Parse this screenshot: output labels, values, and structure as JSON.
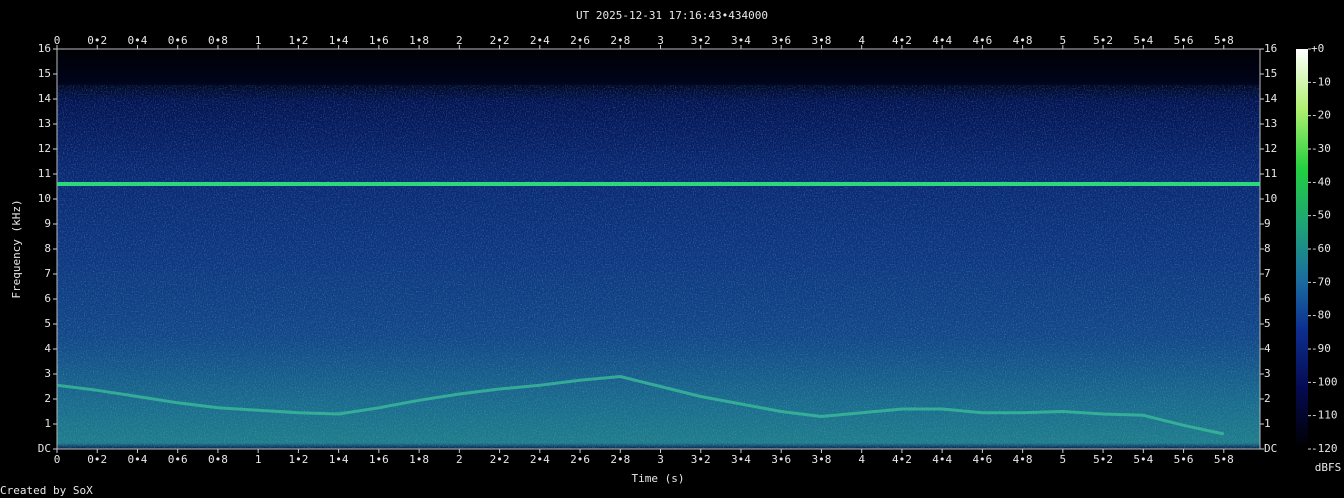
{
  "chart_data": {
    "type": "spectrogram",
    "title": "UT 2025-12-31 17:16:43•434000",
    "x_label": "Time (s)",
    "y_label": "Frequency (kHz)",
    "xlim": [
      0,
      5.98
    ],
    "ylim": [
      0,
      16
    ],
    "xticks": [
      0,
      {
        "value": 0.2,
        "label": "0•2"
      },
      {
        "value": 0.4,
        "label": "0•4"
      },
      {
        "value": 0.6,
        "label": "0•6"
      },
      {
        "value": 0.8,
        "label": "0•8"
      },
      1,
      {
        "value": 1.2,
        "label": "1•2"
      },
      {
        "value": 1.4,
        "label": "1•4"
      },
      {
        "value": 1.6,
        "label": "1•6"
      },
      {
        "value": 1.8,
        "label": "1•8"
      },
      2,
      {
        "value": 2.2,
        "label": "2•2"
      },
      {
        "value": 2.4,
        "label": "2•4"
      },
      {
        "value": 2.6,
        "label": "2•6"
      },
      {
        "value": 2.8,
        "label": "2•8"
      },
      3,
      {
        "value": 3.2,
        "label": "3•2"
      },
      {
        "value": 3.4,
        "label": "3•4"
      },
      {
        "value": 3.6,
        "label": "3•6"
      },
      {
        "value": 3.8,
        "label": "3•8"
      },
      4,
      {
        "value": 4.2,
        "label": "4•2"
      },
      {
        "value": 4.4,
        "label": "4•4"
      },
      {
        "value": 4.6,
        "label": "4•6"
      },
      {
        "value": 4.8,
        "label": "4•8"
      },
      5,
      {
        "value": 5.2,
        "label": "5•2"
      },
      {
        "value": 5.4,
        "label": "5•4"
      },
      {
        "value": 5.6,
        "label": "5•6"
      },
      {
        "value": 5.8,
        "label": "5•8"
      }
    ],
    "yticks": [
      {
        "value": 0,
        "label": "DC"
      },
      1,
      2,
      3,
      4,
      5,
      6,
      7,
      8,
      9,
      10,
      11,
      12,
      13,
      14,
      15,
      16
    ],
    "colorbar": {
      "label": "dBFS",
      "lim": [
        -120,
        0
      ],
      "ticks": [
        {
          "value": 0,
          "label": "+0"
        },
        -10,
        -20,
        -30,
        -40,
        -50,
        -60,
        -70,
        -80,
        -90,
        -100,
        -110,
        -120
      ]
    },
    "series": [
      {
        "color": "#2fe07c",
        "x": [
          0,
          5.98
        ],
        "values": [
          10.6,
          10.6
        ]
      },
      {
        "color": "#3cc29a",
        "x": [
          0,
          0.2,
          0.4,
          0.6,
          0.8,
          1.0,
          1.2,
          1.4,
          1.6,
          1.8,
          2.0,
          2.2,
          2.4,
          2.6,
          2.8,
          3.0,
          3.2,
          3.4,
          3.6,
          3.8,
          4.0,
          4.2,
          4.4,
          4.6,
          4.8,
          5.0,
          5.2,
          5.4,
          5.6,
          5.8
        ],
        "values": [
          2.55,
          2.35,
          2.1,
          1.85,
          1.65,
          1.55,
          1.45,
          1.4,
          1.65,
          1.95,
          2.2,
          2.4,
          2.55,
          2.75,
          2.9,
          2.5,
          2.1,
          1.8,
          1.5,
          1.3,
          1.45,
          1.6,
          1.6,
          1.45,
          1.45,
          1.5,
          1.4,
          1.35,
          0.95,
          0.6
        ]
      }
    ],
    "credit": "Created by SoX"
  }
}
